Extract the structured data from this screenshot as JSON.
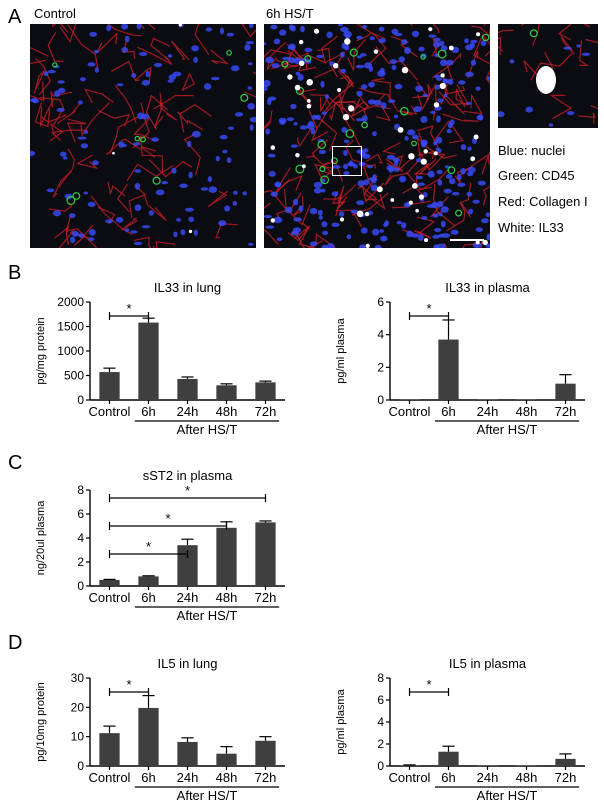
{
  "panel_letters": [
    "A",
    "B",
    "C",
    "D"
  ],
  "micrographs": {
    "control_label": "Control",
    "hst_label": "6h HS/T",
    "legend": [
      "Blue: nuclei",
      "Green: CD45",
      "Red: Collagen I",
      "White: IL33"
    ],
    "colors": {
      "nuclei": "#3a4cff",
      "cd45": "#2fd04a",
      "collagen": "#d0202a",
      "il33": "#ffffff"
    }
  },
  "chart_data": [
    {
      "type": "bar",
      "title": "IL33 in lung",
      "ylabel": "pg/mg protein",
      "categories": [
        "Control",
        "6h",
        "24h",
        "48h",
        "72h"
      ],
      "values": [
        570,
        1580,
        430,
        300,
        360
      ],
      "errors": [
        80,
        90,
        40,
        30,
        25
      ],
      "ylim": [
        0,
        2000
      ],
      "yticks": [
        "0",
        "500",
        "1000",
        "1500",
        "2000"
      ],
      "group_label": "After HS/T",
      "significance": [
        {
          "from": 0,
          "to": 1,
          "label": "*"
        }
      ]
    },
    {
      "type": "bar",
      "title": "IL33 in plasma",
      "ylabel": "pg/ml plasma",
      "categories": [
        "Control",
        "6h",
        "24h",
        "48h",
        "72h"
      ],
      "values": [
        0,
        3.7,
        0,
        0,
        1.0
      ],
      "errors": [
        0,
        1.2,
        0,
        0,
        0.55
      ],
      "ylim": [
        0,
        6
      ],
      "yticks": [
        "0",
        "2",
        "4",
        "6"
      ],
      "group_label": "After HS/T",
      "significance": [
        {
          "from": 0,
          "to": 1,
          "label": "*"
        }
      ]
    },
    {
      "type": "bar",
      "title": "sST2 in plasma",
      "ylabel": "ng/20ul plasma",
      "categories": [
        "Control",
        "6h",
        "24h",
        "48h",
        "72h"
      ],
      "values": [
        0.5,
        0.8,
        3.4,
        4.85,
        5.3
      ],
      "errors": [
        0.05,
        0.05,
        0.5,
        0.5,
        0.12
      ],
      "ylim": [
        0,
        8
      ],
      "yticks": [
        "0",
        "2",
        "4",
        "6",
        "8"
      ],
      "group_label": "After HS/T",
      "significance": [
        {
          "from": 0,
          "to": 4,
          "label": "*"
        },
        {
          "from": 0,
          "to": 3,
          "label": "*"
        },
        {
          "from": 0,
          "to": 2,
          "label": "*"
        }
      ]
    },
    {
      "type": "bar",
      "title": "IL5 in lung",
      "ylabel": "pg/10mg protein",
      "categories": [
        "Control",
        "6h",
        "24h",
        "48h",
        "72h"
      ],
      "values": [
        11.2,
        19.8,
        8.2,
        4.2,
        8.6
      ],
      "errors": [
        2.4,
        4.2,
        1.4,
        2.4,
        1.4
      ],
      "ylim": [
        0,
        30
      ],
      "yticks": [
        "0",
        "10",
        "20",
        "30"
      ],
      "group_label": "After HS/T",
      "significance": [
        {
          "from": 0,
          "to": 1,
          "label": "*"
        }
      ]
    },
    {
      "type": "bar",
      "title": "IL5 in plasma",
      "ylabel": "pg/ml plasma",
      "categories": [
        "Control",
        "6h",
        "24h",
        "48h",
        "72h"
      ],
      "values": [
        0.05,
        1.3,
        0,
        0,
        0.65
      ],
      "errors": [
        0.05,
        0.5,
        0,
        0,
        0.45
      ],
      "ylim": [
        0,
        8
      ],
      "yticks": [
        "0",
        "2",
        "4",
        "6",
        "8"
      ],
      "group_label": "After HS/T",
      "significance": [
        {
          "from": 0,
          "to": 1,
          "label": "*"
        }
      ]
    }
  ]
}
